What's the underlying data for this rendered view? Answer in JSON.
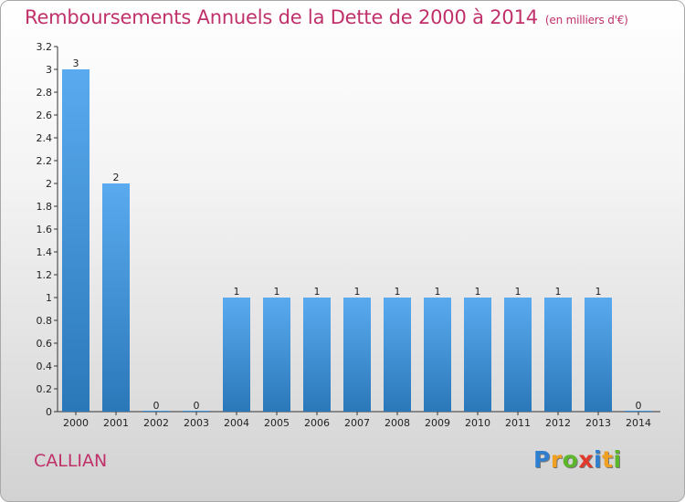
{
  "chart_data": {
    "type": "bar",
    "title": "Remboursements Annuels de la Dette de 2000 à 2014",
    "unit_note": "(en milliers d'€)",
    "categories": [
      "2000",
      "2001",
      "2002",
      "2003",
      "2004",
      "2005",
      "2006",
      "2007",
      "2008",
      "2009",
      "2010",
      "2011",
      "2012",
      "2013",
      "2014"
    ],
    "values": [
      3,
      2,
      0,
      0,
      1,
      1,
      1,
      1,
      1,
      1,
      1,
      1,
      1,
      1,
      0
    ],
    "ylim": [
      0,
      3.2
    ],
    "yticks": [
      "0",
      "0.2",
      "0.4",
      "0.6",
      "0.8",
      "1",
      "1.2",
      "1.4",
      "1.6",
      "1.8",
      "2",
      "2.2",
      "2.4",
      "2.6",
      "2.8",
      "3",
      "3.2"
    ],
    "xlabel": "",
    "ylabel": "",
    "bar_color": "#3d8fd6",
    "grid": false
  },
  "footer": {
    "commune": "CALLIAN",
    "logo_letters": [
      "P",
      "r",
      "o",
      "x",
      "i",
      "t",
      "i"
    ],
    "logo_colors": [
      "#2f7fd0",
      "#f0a020",
      "#5cb82a",
      "#e03a2a",
      "#2f7fd0",
      "#f0a020",
      "#5cb82a"
    ]
  },
  "colors": {
    "title": "#c0306a",
    "commune": "#c0306a"
  }
}
